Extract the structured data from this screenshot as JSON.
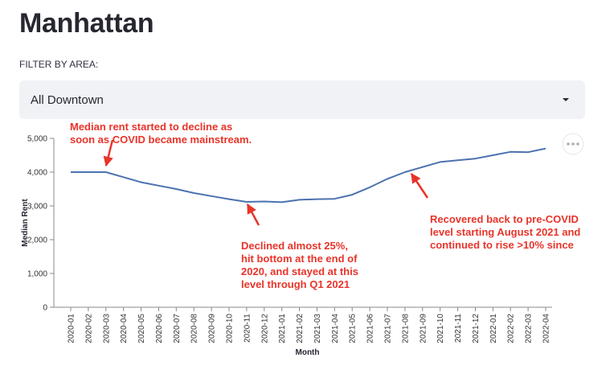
{
  "page": {
    "title": "Manhattan",
    "filter_label": "FILTER BY AREA:"
  },
  "filter": {
    "selected": "All Downtown"
  },
  "icons": {
    "select_caret": "caret-down-icon",
    "chart_menu": "more-horizontal-icon"
  },
  "colors": {
    "line": "#4c72b0",
    "annotation": "#e8342a",
    "select_bg": "#f0f2f6"
  },
  "chart_data": {
    "type": "line",
    "xlabel": "Month",
    "ylabel": "Median Rent",
    "ylim": [
      0,
      5000
    ],
    "yticks": [
      0,
      1000,
      2000,
      3000,
      4000,
      5000
    ],
    "ytick_labels": [
      "0",
      "1,000",
      "2,000",
      "3,000",
      "4,000",
      "5,000"
    ],
    "grid": false,
    "categories": [
      "2020-01",
      "2020-02",
      "2020-03",
      "2020-04",
      "2020-05",
      "2020-06",
      "2020-07",
      "2020-08",
      "2020-09",
      "2020-10",
      "2020-11",
      "2020-12",
      "2021-01",
      "2021-02",
      "2021-03",
      "2021-04",
      "2021-05",
      "2021-06",
      "2021-07",
      "2021-08",
      "2021-09",
      "2021-10",
      "2021-11",
      "2021-12",
      "2022-01",
      "2022-02",
      "2022-03",
      "2022-04"
    ],
    "series": [
      {
        "values": [
          4000,
          4000,
          4000,
          3850,
          3700,
          3600,
          3500,
          3380,
          3290,
          3200,
          3120,
          3130,
          3110,
          3180,
          3200,
          3210,
          3330,
          3550,
          3800,
          4000,
          4150,
          4300,
          4350,
          4400,
          4500,
          4600,
          4590,
          4700
        ]
      }
    ],
    "annotations": [
      {
        "lines": [
          "Median rent started to decline as",
          "soon as COVID became mainstream."
        ],
        "points_to": "2020-03"
      },
      {
        "lines": [
          "Declined almost 25%,",
          "hit bottom at the end of",
          "2020, and stayed at this",
          "level through Q1 2021"
        ],
        "points_to": "2020-11"
      },
      {
        "lines": [
          "Recovered back to pre-COVID",
          "level starting August 2021 and",
          "continued to rise >10% since"
        ],
        "points_to": "2021-08"
      }
    ]
  }
}
